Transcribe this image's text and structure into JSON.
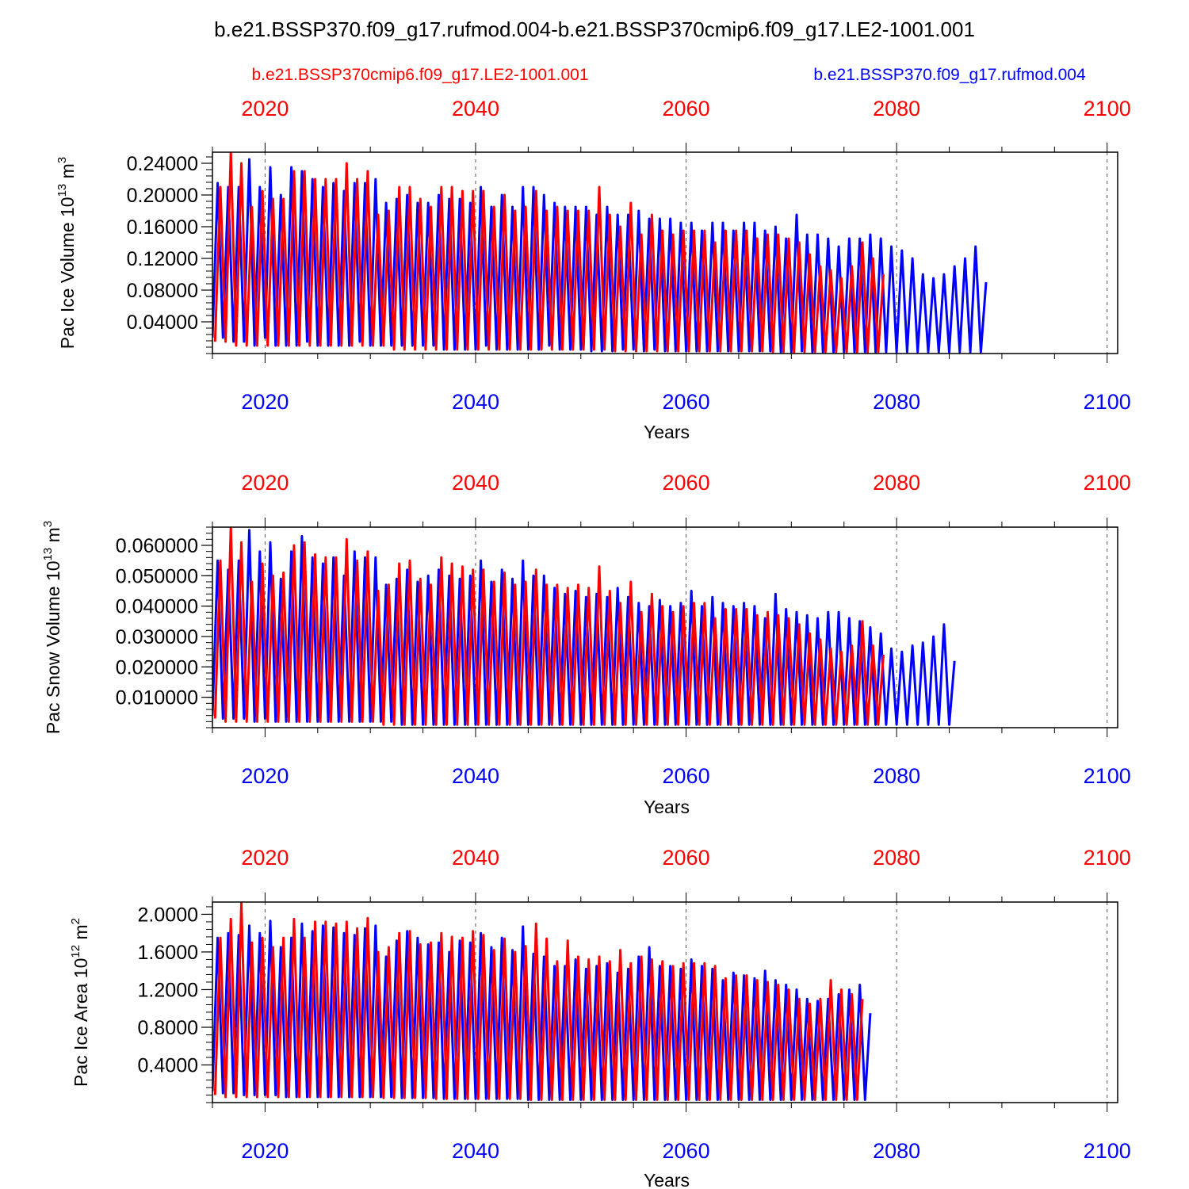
{
  "figure": {
    "title": "b.e21.BSSP370.f09_g17.rufmod.004-b.e21.BSSP370cmip6.f09_g17.LE2-1001.001",
    "legend_left": "b.e21.BSSP370cmip6.f09_g17.LE2-1001.001",
    "legend_right": "b.e21.BSSP370.f09_g17.rufmod.004",
    "colors": {
      "red_series": "#ff0000",
      "blue_series": "#0000ff",
      "axis": "#000000",
      "grid": "#555555"
    }
  },
  "chart_data": [
    {
      "type": "line",
      "ylabel": "Pac Ice Volume 10",
      "ylabel_exp": "13",
      "ylabel_unit": " m",
      "ylabel_unit_exp": "3",
      "xlabel": "Years",
      "xlim": [
        2015,
        2101
      ],
      "ylim": [
        0.0,
        0.254
      ],
      "xticks": [
        2020,
        2040,
        2060,
        2080,
        2100
      ],
      "xtick_labels": [
        "2020",
        "2040",
        "2060",
        "2080",
        "2100"
      ],
      "yticks": [
        0.04,
        0.08,
        0.12,
        0.16,
        0.2,
        0.24
      ],
      "ytick_labels": [
        "0.04000",
        "0.08000",
        "0.12000",
        "0.16000",
        "0.20000",
        "0.24000"
      ],
      "ytick_minor_step": 0.008,
      "grid": "vertical dashed at major x ticks",
      "series": [
        {
          "name": "b.e21.BSSP370.f09_g17.rufmod.004",
          "color": "blue",
          "x_start": 2015.0,
          "x_step": 0.5,
          "values": [
            0.02,
            0.215,
            0.02,
            0.21,
            0.015,
            0.21,
            0.015,
            0.245,
            0.01,
            0.21,
            0.02,
            0.235,
            0.01,
            0.2,
            0.01,
            0.235,
            0.01,
            0.23,
            0.015,
            0.22,
            0.01,
            0.21,
            0.01,
            0.215,
            0.01,
            0.205,
            0.01,
            0.215,
            0.015,
            0.215,
            0.01,
            0.22,
            0.01,
            0.19,
            0.01,
            0.195,
            0.01,
            0.2,
            0.01,
            0.19,
            0.01,
            0.19,
            0.01,
            0.2,
            0.005,
            0.195,
            0.005,
            0.195,
            0.005,
            0.19,
            0.005,
            0.21,
            0.01,
            0.185,
            0.005,
            0.2,
            0.005,
            0.185,
            0.005,
            0.21,
            0.005,
            0.21,
            0.005,
            0.2,
            0.01,
            0.19,
            0.005,
            0.185,
            0.005,
            0.185,
            0.005,
            0.185,
            0.003,
            0.175,
            0.003,
            0.185,
            0.003,
            0.175,
            0.005,
            0.175,
            0.005,
            0.18,
            0.003,
            0.17,
            0.005,
            0.17,
            0.003,
            0.17,
            0.003,
            0.165,
            0.003,
            0.165,
            0.003,
            0.155,
            0.003,
            0.165,
            0.003,
            0.165,
            0.003,
            0.155,
            0.003,
            0.165,
            0.003,
            0.165,
            0.003,
            0.155,
            0.003,
            0.16,
            0.002,
            0.145,
            0.002,
            0.175,
            0.003,
            0.15,
            0.002,
            0.15,
            0.002,
            0.145,
            0.002,
            0.135,
            0.002,
            0.145,
            0.002,
            0.145,
            0.002,
            0.15,
            0.002,
            0.145,
            0.002,
            0.135,
            0.002,
            0.13,
            0.002,
            0.12,
            0.002,
            0.1,
            0.002,
            0.095,
            0.002,
            0.1,
            0.002,
            0.11,
            0.002,
            0.12,
            0.002,
            0.135,
            0.002,
            0.09
          ]
        },
        {
          "name": "b.e21.BSSP370cmip6.f09_g17.LE2-1001.001",
          "color": "red",
          "x_start": 2015.25,
          "x_step": 0.5,
          "values": [
            0.015,
            0.21,
            0.015,
            0.255,
            0.01,
            0.24,
            0.01,
            0.185,
            0.01,
            0.205,
            0.01,
            0.195,
            0.01,
            0.195,
            0.01,
            0.23,
            0.01,
            0.23,
            0.01,
            0.22,
            0.01,
            0.22,
            0.01,
            0.22,
            0.01,
            0.24,
            0.01,
            0.22,
            0.01,
            0.23,
            0.01,
            0.175,
            0.01,
            0.18,
            0.005,
            0.21,
            0.005,
            0.21,
            0.005,
            0.195,
            0.005,
            0.185,
            0.005,
            0.21,
            0.005,
            0.21,
            0.005,
            0.205,
            0.005,
            0.205,
            0.005,
            0.205,
            0.005,
            0.185,
            0.005,
            0.2,
            0.005,
            0.18,
            0.005,
            0.185,
            0.005,
            0.205,
            0.005,
            0.18,
            0.005,
            0.185,
            0.005,
            0.18,
            0.005,
            0.18,
            0.005,
            0.18,
            0.005,
            0.21,
            0.005,
            0.175,
            0.003,
            0.16,
            0.003,
            0.19,
            0.003,
            0.15,
            0.003,
            0.175,
            0.003,
            0.155,
            0.003,
            0.15,
            0.003,
            0.155,
            0.003,
            0.155,
            0.003,
            0.155,
            0.003,
            0.14,
            0.003,
            0.155,
            0.003,
            0.155,
            0.003,
            0.155,
            0.003,
            0.145,
            0.003,
            0.15,
            0.002,
            0.15,
            0.002,
            0.145,
            0.002,
            0.14,
            0.002,
            0.125,
            0.002,
            0.11,
            0.002,
            0.105,
            0.002,
            0.095,
            0.002,
            0.11,
            0.002,
            0.14,
            0.002,
            0.12,
            0.002,
            0.1
          ]
        }
      ]
    },
    {
      "type": "line",
      "ylabel": "Pac Snow Volume 10",
      "ylabel_exp": "13",
      "ylabel_unit": " m",
      "ylabel_unit_exp": "3",
      "xlabel": "Years",
      "xlim": [
        2015,
        2101
      ],
      "ylim": [
        0.0,
        0.066
      ],
      "xticks": [
        2020,
        2040,
        2060,
        2080,
        2100
      ],
      "xtick_labels": [
        "2020",
        "2040",
        "2060",
        "2080",
        "2100"
      ],
      "yticks": [
        0.01,
        0.02,
        0.03,
        0.04,
        0.05,
        0.06
      ],
      "ytick_labels": [
        "0.010000",
        "0.020000",
        "0.030000",
        "0.040000",
        "0.050000",
        "0.060000"
      ],
      "ytick_minor_step": 0.002,
      "grid": "vertical dashed at major x ticks",
      "series": [
        {
          "name": "b.e21.BSSP370.f09_g17.rufmod.004",
          "color": "blue",
          "x_start": 2015.0,
          "x_step": 0.5,
          "values": [
            0.004,
            0.055,
            0.003,
            0.052,
            0.003,
            0.055,
            0.003,
            0.065,
            0.002,
            0.058,
            0.003,
            0.061,
            0.002,
            0.049,
            0.002,
            0.058,
            0.002,
            0.063,
            0.002,
            0.056,
            0.002,
            0.054,
            0.002,
            0.056,
            0.002,
            0.05,
            0.002,
            0.058,
            0.002,
            0.056,
            0.002,
            0.056,
            0.002,
            0.047,
            0.002,
            0.049,
            0.001,
            0.052,
            0.001,
            0.048,
            0.001,
            0.05,
            0.001,
            0.052,
            0.001,
            0.05,
            0.001,
            0.049,
            0.001,
            0.05,
            0.001,
            0.055,
            0.001,
            0.048,
            0.001,
            0.052,
            0.001,
            0.049,
            0.001,
            0.055,
            0.001,
            0.05,
            0.001,
            0.05,
            0.001,
            0.046,
            0.001,
            0.044,
            0.001,
            0.045,
            0.001,
            0.043,
            0.001,
            0.044,
            0.001,
            0.043,
            0.001,
            0.046,
            0.001,
            0.043,
            0.001,
            0.041,
            0.001,
            0.04,
            0.001,
            0.042,
            0.001,
            0.04,
            0.001,
            0.041,
            0.001,
            0.045,
            0.001,
            0.04,
            0.001,
            0.043,
            0.001,
            0.041,
            0.001,
            0.04,
            0.001,
            0.041,
            0.001,
            0.04,
            0.001,
            0.036,
            0.001,
            0.044,
            0.001,
            0.039,
            0.001,
            0.038,
            0.001,
            0.037,
            0.001,
            0.036,
            0.001,
            0.038,
            0.001,
            0.038,
            0.001,
            0.036,
            0.001,
            0.035,
            0.001,
            0.033,
            0.001,
            0.031,
            0.001,
            0.026,
            0.001,
            0.025,
            0.001,
            0.027,
            0.001,
            0.028,
            0.001,
            0.03,
            0.001,
            0.034,
            0.001,
            0.022
          ]
        },
        {
          "name": "b.e21.BSSP370cmip6.f09_g17.LE2-1001.001",
          "color": "red",
          "x_start": 2015.25,
          "x_step": 0.5,
          "values": [
            0.003,
            0.055,
            0.002,
            0.066,
            0.002,
            0.061,
            0.002,
            0.048,
            0.002,
            0.054,
            0.002,
            0.05,
            0.002,
            0.051,
            0.002,
            0.06,
            0.002,
            0.061,
            0.002,
            0.057,
            0.002,
            0.056,
            0.002,
            0.056,
            0.002,
            0.062,
            0.002,
            0.055,
            0.002,
            0.058,
            0.002,
            0.045,
            0.001,
            0.047,
            0.001,
            0.054,
            0.001,
            0.055,
            0.001,
            0.049,
            0.001,
            0.047,
            0.001,
            0.056,
            0.001,
            0.054,
            0.001,
            0.053,
            0.001,
            0.052,
            0.001,
            0.052,
            0.001,
            0.048,
            0.001,
            0.051,
            0.001,
            0.047,
            0.001,
            0.048,
            0.001,
            0.052,
            0.001,
            0.047,
            0.001,
            0.047,
            0.001,
            0.046,
            0.001,
            0.047,
            0.001,
            0.046,
            0.001,
            0.053,
            0.001,
            0.045,
            0.001,
            0.041,
            0.001,
            0.048,
            0.001,
            0.038,
            0.001,
            0.044,
            0.001,
            0.04,
            0.001,
            0.038,
            0.001,
            0.04,
            0.001,
            0.041,
            0.001,
            0.041,
            0.001,
            0.036,
            0.001,
            0.039,
            0.001,
            0.039,
            0.001,
            0.039,
            0.001,
            0.037,
            0.001,
            0.038,
            0.001,
            0.037,
            0.001,
            0.036,
            0.001,
            0.034,
            0.001,
            0.031,
            0.001,
            0.029,
            0.001,
            0.026,
            0.001,
            0.025,
            0.001,
            0.027,
            0.001,
            0.035,
            0.001,
            0.027,
            0.001,
            0.024
          ]
        }
      ]
    },
    {
      "type": "line",
      "ylabel": "Pac Ice Area 10",
      "ylabel_exp": "12",
      "ylabel_unit": " m",
      "ylabel_unit_exp": "2",
      "xlabel": "Years",
      "xlim": [
        2015,
        2101
      ],
      "ylim": [
        0.0,
        2.13
      ],
      "xticks": [
        2020,
        2040,
        2060,
        2080,
        2100
      ],
      "xtick_labels": [
        "2020",
        "2040",
        "2060",
        "2080",
        "2100"
      ],
      "yticks": [
        0.4,
        0.8,
        1.2,
        1.6,
        2.0
      ],
      "ytick_labels": [
        "0.4000",
        "0.8000",
        "1.2000",
        "1.6000",
        "2.0000"
      ],
      "ytick_minor_step": 0.08,
      "grid": "vertical dashed at major x ticks",
      "series": [
        {
          "name": "b.e21.BSSP370.f09_g17.rufmod.004",
          "color": "blue",
          "x_start": 2015.0,
          "x_step": 0.5,
          "values": [
            0.12,
            1.75,
            0.1,
            1.8,
            0.1,
            1.78,
            0.08,
            1.88,
            0.08,
            1.8,
            0.08,
            1.93,
            0.08,
            1.65,
            0.06,
            1.75,
            0.06,
            1.9,
            0.06,
            1.82,
            0.06,
            1.88,
            0.06,
            1.86,
            0.06,
            1.8,
            0.06,
            1.78,
            0.06,
            1.85,
            0.06,
            1.88,
            0.06,
            1.55,
            0.06,
            1.72,
            0.05,
            1.82,
            0.05,
            1.75,
            0.05,
            1.68,
            0.05,
            1.7,
            0.04,
            1.6,
            0.04,
            1.72,
            0.04,
            1.7,
            0.04,
            1.8,
            0.04,
            1.65,
            0.04,
            1.75,
            0.04,
            1.62,
            0.04,
            1.87,
            0.03,
            1.58,
            0.03,
            1.55,
            0.03,
            1.45,
            0.03,
            1.45,
            0.03,
            1.52,
            0.03,
            1.42,
            0.03,
            1.45,
            0.03,
            1.48,
            0.03,
            1.38,
            0.03,
            1.42,
            0.03,
            1.55,
            0.03,
            1.65,
            0.03,
            1.45,
            0.03,
            1.45,
            0.03,
            1.42,
            0.03,
            1.52,
            0.03,
            1.45,
            0.03,
            1.42,
            0.03,
            1.3,
            0.03,
            1.38,
            0.03,
            1.35,
            0.03,
            1.32,
            0.03,
            1.4,
            0.03,
            1.3,
            0.03,
            1.25,
            0.03,
            1.2,
            0.03,
            1.1,
            0.03,
            1.08,
            0.03,
            1.1,
            0.03,
            1.15,
            0.03,
            1.2,
            0.03,
            1.25,
            0.03,
            0.95
          ]
        },
        {
          "name": "b.e21.BSSP370cmip6.f09_g17.LE2-1001.001",
          "color": "red",
          "x_start": 2015.25,
          "x_step": 0.5,
          "values": [
            0.08,
            1.75,
            0.06,
            1.95,
            0.06,
            2.12,
            0.06,
            1.7,
            0.06,
            1.75,
            0.06,
            1.65,
            0.06,
            1.75,
            0.06,
            1.95,
            0.06,
            1.75,
            0.06,
            1.92,
            0.06,
            1.92,
            0.06,
            1.9,
            0.06,
            1.92,
            0.06,
            1.85,
            0.06,
            1.96,
            0.06,
            1.6,
            0.05,
            1.65,
            0.05,
            1.8,
            0.05,
            1.82,
            0.05,
            1.68,
            0.05,
            1.7,
            0.04,
            1.8,
            0.04,
            1.76,
            0.04,
            1.75,
            0.04,
            1.82,
            0.04,
            1.78,
            0.04,
            1.62,
            0.04,
            1.74,
            0.04,
            1.6,
            0.04,
            1.66,
            0.03,
            1.9,
            0.03,
            1.74,
            0.03,
            1.5,
            0.03,
            1.72,
            0.03,
            1.55,
            0.03,
            1.52,
            0.03,
            1.55,
            0.03,
            1.5,
            0.03,
            1.62,
            0.03,
            1.48,
            0.03,
            1.55,
            0.03,
            1.52,
            0.03,
            1.5,
            0.03,
            1.45,
            0.03,
            1.48,
            0.03,
            1.48,
            0.03,
            1.48,
            0.03,
            1.45,
            0.03,
            1.32,
            0.03,
            1.35,
            0.03,
            1.35,
            0.03,
            1.3,
            0.03,
            1.28,
            0.03,
            1.25,
            0.03,
            1.2,
            0.03,
            1.1,
            0.03,
            1.05,
            0.03,
            1.1,
            0.03,
            1.3,
            0.03,
            1.2,
            0.03,
            1.15,
            0.03,
            1.1
          ]
        }
      ]
    }
  ]
}
